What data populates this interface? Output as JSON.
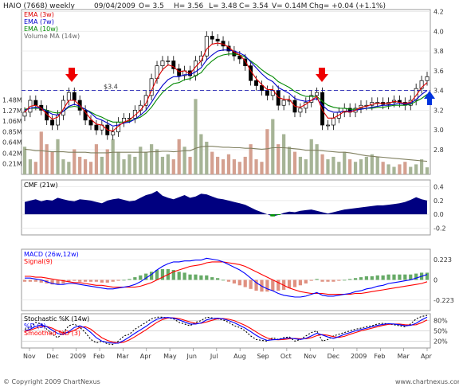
{
  "header": {
    "symbol": "HAIO (7668) weekly",
    "date": "09/04/2009",
    "open": "O= 3.5",
    "high": "H= 3.56",
    "low": "L= 3.48",
    "close": "C= 3.54",
    "volume": "V= 0.14M",
    "change": "Chg= +0.04 (+1.1%)"
  },
  "footer": {
    "copyright": "© Copyright 2009 ChartNexus",
    "website": "www.chartnexus.com"
  },
  "colors": {
    "ema3": "#dd0000",
    "ema7": "#0000cc",
    "ema10": "#008800",
    "volma": "#808060",
    "vol_up": "#a6b496",
    "vol_down": "#d4a090",
    "cmf": "#000080",
    "macd": "#0000ff",
    "signal": "#ff0000",
    "hist_up": "#66aa66",
    "hist_down": "#e09080",
    "stoch_k": "#0000ff",
    "stoch_d": "#ff0000",
    "stoch_raw": "#000000",
    "ref_line": "#0000aa"
  },
  "chart_data": [
    {
      "type": "candlestick",
      "title": "HAIO (7668) weekly",
      "x_labels": [
        "Nov",
        "Dec",
        "2009",
        "Feb",
        "Mar",
        "Apr",
        "May",
        "Jun",
        "Jul",
        "Aug",
        "Sep",
        "Oct",
        "Nov",
        "Dec",
        "2009",
        "Feb",
        "Mar",
        "Apr"
      ],
      "price_ticks": [
        "4.2",
        "4.0",
        "3.8",
        "3.6",
        "3.4",
        "3.2",
        "3.0",
        "2.8"
      ],
      "volume_ticks": [
        "1.48M",
        "1.27M",
        "1.06M",
        "0.85M",
        "0.64M",
        "0.42M",
        "0.21M"
      ],
      "ylim": [
        2.55,
        4.22
      ],
      "reference_line": {
        "label": "$3.4",
        "value": 3.4
      },
      "legend": [
        "EMA (3w)",
        "EMA (7w)",
        "EMA (10w)",
        "Volume MA (14w)"
      ],
      "close": [
        3.18,
        3.3,
        3.25,
        3.2,
        3.1,
        3.05,
        3.15,
        3.3,
        3.38,
        3.3,
        3.2,
        3.1,
        3.05,
        3.0,
        3.05,
        2.95,
        2.98,
        3.08,
        3.12,
        3.12,
        3.2,
        3.25,
        3.35,
        3.52,
        3.65,
        3.7,
        3.7,
        3.62,
        3.55,
        3.6,
        3.55,
        3.7,
        3.75,
        3.95,
        3.92,
        3.9,
        3.85,
        3.8,
        3.75,
        3.72,
        3.65,
        3.5,
        3.45,
        3.4,
        3.35,
        3.4,
        3.25,
        3.3,
        3.3,
        3.18,
        3.22,
        3.28,
        3.35,
        3.38,
        3.05,
        3.05,
        3.12,
        3.18,
        3.22,
        3.18,
        3.22,
        3.25,
        3.25,
        3.28,
        3.28,
        3.26,
        3.28,
        3.3,
        3.28,
        3.25,
        3.3,
        3.42,
        3.5,
        3.54
      ],
      "ema_3w": [
        3.18,
        3.24,
        3.25,
        3.22,
        3.16,
        3.11,
        3.13,
        3.21,
        3.3,
        3.3,
        3.25,
        3.18,
        3.11,
        3.06,
        3.05,
        3.0,
        2.99,
        3.04,
        3.08,
        3.1,
        3.15,
        3.2,
        3.27,
        3.4,
        3.52,
        3.61,
        3.66,
        3.64,
        3.59,
        3.6,
        3.57,
        3.64,
        3.7,
        3.82,
        3.87,
        3.88,
        3.87,
        3.84,
        3.79,
        3.76,
        3.7,
        3.6,
        3.52,
        3.46,
        3.41,
        3.41,
        3.33,
        3.31,
        3.31,
        3.24,
        3.23,
        3.26,
        3.3,
        3.34,
        3.2,
        3.12,
        3.12,
        3.15,
        3.19,
        3.18,
        3.2,
        3.23,
        3.24,
        3.26,
        3.27,
        3.27,
        3.27,
        3.29,
        3.28,
        3.27,
        3.28,
        3.35,
        3.43,
        3.48
      ],
      "ema_7w": [
        3.2,
        3.22,
        3.23,
        3.22,
        3.19,
        3.16,
        3.15,
        3.19,
        3.24,
        3.26,
        3.24,
        3.21,
        3.17,
        3.12,
        3.1,
        3.07,
        3.04,
        3.05,
        3.07,
        3.08,
        3.11,
        3.15,
        3.2,
        3.28,
        3.37,
        3.45,
        3.51,
        3.54,
        3.54,
        3.56,
        3.56,
        3.59,
        3.63,
        3.71,
        3.76,
        3.8,
        3.81,
        3.81,
        3.8,
        3.78,
        3.75,
        3.69,
        3.63,
        3.57,
        3.52,
        3.49,
        3.43,
        3.4,
        3.37,
        3.32,
        3.3,
        3.29,
        3.3,
        3.32,
        3.25,
        3.2,
        3.18,
        3.18,
        3.19,
        3.19,
        3.2,
        3.21,
        3.22,
        3.23,
        3.24,
        3.25,
        3.25,
        3.26,
        3.27,
        3.26,
        3.27,
        3.31,
        3.36,
        3.4
      ],
      "ema_10w": [
        3.21,
        3.22,
        3.22,
        3.22,
        3.2,
        3.18,
        3.17,
        3.19,
        3.23,
        3.24,
        3.23,
        3.21,
        3.18,
        3.15,
        3.13,
        3.1,
        3.08,
        3.08,
        3.08,
        3.09,
        3.11,
        3.13,
        3.17,
        3.23,
        3.31,
        3.38,
        3.43,
        3.47,
        3.48,
        3.51,
        3.52,
        3.55,
        3.58,
        3.65,
        3.7,
        3.74,
        3.76,
        3.77,
        3.77,
        3.76,
        3.74,
        3.7,
        3.66,
        3.61,
        3.57,
        3.54,
        3.49,
        3.46,
        3.43,
        3.39,
        3.36,
        3.34,
        3.34,
        3.34,
        3.29,
        3.25,
        3.23,
        3.22,
        3.22,
        3.21,
        3.21,
        3.21,
        3.22,
        3.22,
        3.23,
        3.23,
        3.24,
        3.25,
        3.25,
        3.25,
        3.26,
        3.29,
        3.32,
        3.36
      ],
      "volume_M": [
        0.55,
        0.3,
        0.25,
        0.85,
        0.6,
        0.45,
        0.7,
        0.3,
        0.25,
        0.5,
        0.35,
        0.3,
        0.25,
        0.6,
        0.35,
        0.5,
        0.7,
        0.45,
        0.3,
        0.4,
        0.35,
        0.55,
        0.45,
        0.6,
        0.5,
        0.35,
        0.4,
        0.3,
        0.7,
        0.55,
        0.35,
        1.5,
        0.8,
        0.65,
        0.45,
        0.35,
        0.3,
        0.4,
        0.3,
        0.25,
        0.35,
        0.6,
        0.3,
        0.25,
        0.9,
        1.1,
        0.6,
        0.8,
        0.55,
        0.45,
        0.35,
        0.3,
        0.7,
        0.6,
        0.4,
        0.3,
        0.35,
        0.25,
        0.45,
        0.3,
        0.25,
        0.3,
        0.35,
        0.4,
        0.35,
        0.25,
        0.2,
        0.15,
        0.2,
        0.25,
        0.15,
        0.2,
        0.3,
        0.14
      ],
      "volume_ma_14w": [
        0.5,
        0.49,
        0.47,
        0.47,
        0.46,
        0.45,
        0.45,
        0.45,
        0.44,
        0.44,
        0.44,
        0.44,
        0.43,
        0.43,
        0.43,
        0.43,
        0.44,
        0.44,
        0.44,
        0.44,
        0.44,
        0.44,
        0.44,
        0.45,
        0.45,
        0.46,
        0.46,
        0.45,
        0.46,
        0.47,
        0.47,
        0.52,
        0.55,
        0.56,
        0.56,
        0.55,
        0.54,
        0.54,
        0.53,
        0.53,
        0.52,
        0.52,
        0.51,
        0.5,
        0.51,
        0.53,
        0.53,
        0.53,
        0.52,
        0.51,
        0.5,
        0.48,
        0.48,
        0.48,
        0.47,
        0.46,
        0.45,
        0.44,
        0.44,
        0.43,
        0.41,
        0.39,
        0.37,
        0.36,
        0.35,
        0.34,
        0.33,
        0.32,
        0.31,
        0.3,
        0.29,
        0.28,
        0.27,
        0.26
      ]
    },
    {
      "type": "area",
      "title": "CMF (21w)",
      "y_ticks": [
        "0.4",
        "0.2",
        "0.0",
        "-0.2"
      ],
      "ylim": [
        -0.3,
        0.5
      ],
      "values": [
        0.18,
        0.2,
        0.22,
        0.19,
        0.21,
        0.2,
        0.24,
        0.22,
        0.2,
        0.19,
        0.22,
        0.21,
        0.2,
        0.18,
        0.16,
        0.2,
        0.22,
        0.23,
        0.21,
        0.19,
        0.2,
        0.24,
        0.28,
        0.3,
        0.34,
        0.27,
        0.24,
        0.22,
        0.25,
        0.28,
        0.24,
        0.26,
        0.3,
        0.29,
        0.26,
        0.23,
        0.22,
        0.2,
        0.18,
        0.16,
        0.14,
        0.1,
        0.06,
        0.03,
        0.0,
        -0.03,
        -0.01,
        0.02,
        0.04,
        0.03,
        0.05,
        0.06,
        0.07,
        0.05,
        0.03,
        0.01,
        0.03,
        0.05,
        0.07,
        0.08,
        0.09,
        0.1,
        0.11,
        0.12,
        0.13,
        0.13,
        0.14,
        0.15,
        0.16,
        0.18,
        0.21,
        0.25,
        0.22,
        0.2
      ]
    },
    {
      "type": "line",
      "title": "MACD (26w,12w)",
      "legend": [
        "MACD (26w,12w)",
        "Signal(9)"
      ],
      "y_ticks": [
        "0.223",
        "0",
        "-0.223"
      ],
      "ylim": [
        -0.34,
        0.34
      ],
      "macd": [
        0.02,
        0.02,
        0.01,
        0.0,
        -0.02,
        -0.04,
        -0.05,
        -0.05,
        -0.04,
        -0.04,
        -0.05,
        -0.06,
        -0.07,
        -0.08,
        -0.09,
        -0.1,
        -0.1,
        -0.09,
        -0.08,
        -0.07,
        -0.05,
        -0.02,
        0.02,
        0.06,
        0.11,
        0.15,
        0.18,
        0.2,
        0.2,
        0.21,
        0.21,
        0.22,
        0.22,
        0.24,
        0.23,
        0.22,
        0.2,
        0.17,
        0.14,
        0.11,
        0.07,
        0.02,
        -0.03,
        -0.07,
        -0.1,
        -0.12,
        -0.15,
        -0.17,
        -0.18,
        -0.19,
        -0.19,
        -0.18,
        -0.16,
        -0.14,
        -0.17,
        -0.18,
        -0.18,
        -0.17,
        -0.16,
        -0.15,
        -0.13,
        -0.12,
        -0.1,
        -0.09,
        -0.07,
        -0.06,
        -0.04,
        -0.03,
        -0.02,
        -0.01,
        0.0,
        0.02,
        0.04,
        0.06
      ],
      "signal": [
        0.04,
        0.04,
        0.03,
        0.03,
        0.02,
        0.01,
        0.0,
        -0.01,
        -0.02,
        -0.03,
        -0.03,
        -0.04,
        -0.05,
        -0.06,
        -0.06,
        -0.07,
        -0.08,
        -0.08,
        -0.08,
        -0.08,
        -0.08,
        -0.07,
        -0.05,
        -0.03,
        0.0,
        0.03,
        0.06,
        0.09,
        0.11,
        0.13,
        0.15,
        0.16,
        0.17,
        0.19,
        0.2,
        0.2,
        0.2,
        0.19,
        0.18,
        0.17,
        0.15,
        0.12,
        0.09,
        0.06,
        0.03,
        0.0,
        -0.03,
        -0.06,
        -0.09,
        -0.11,
        -0.13,
        -0.14,
        -0.15,
        -0.15,
        -0.15,
        -0.16,
        -0.16,
        -0.16,
        -0.16,
        -0.16,
        -0.15,
        -0.15,
        -0.14,
        -0.13,
        -0.12,
        -0.11,
        -0.1,
        -0.09,
        -0.08,
        -0.07,
        -0.06,
        -0.05,
        -0.04,
        -0.02
      ]
    },
    {
      "type": "line",
      "title": "Stochastic %K (14w)",
      "legend": [
        "Stochastic %K (14w)",
        "%D (3)",
        "Smoothed %D (3)"
      ],
      "y_ticks": [
        "80%",
        "50%",
        "20%"
      ],
      "ylim": [
        0,
        100
      ],
      "k": [
        55,
        60,
        75,
        70,
        55,
        40,
        30,
        45,
        65,
        70,
        60,
        45,
        25,
        15,
        20,
        12,
        10,
        20,
        35,
        40,
        55,
        65,
        75,
        85,
        90,
        90,
        88,
        85,
        75,
        70,
        65,
        75,
        80,
        90,
        88,
        85,
        82,
        75,
        65,
        60,
        50,
        35,
        25,
        22,
        20,
        30,
        25,
        30,
        32,
        20,
        25,
        35,
        45,
        50,
        20,
        25,
        35,
        40,
        45,
        50,
        55,
        58,
        62,
        65,
        70,
        72,
        70,
        68,
        65,
        62,
        70,
        85,
        92,
        95
      ],
      "d": [
        50,
        55,
        63,
        68,
        62,
        52,
        42,
        40,
        48,
        60,
        65,
        58,
        45,
        30,
        20,
        16,
        14,
        14,
        22,
        32,
        43,
        53,
        63,
        75,
        84,
        88,
        89,
        87,
        82,
        76,
        70,
        70,
        73,
        82,
        86,
        87,
        85,
        80,
        74,
        66,
        58,
        48,
        37,
        28,
        22,
        24,
        25,
        28,
        29,
        27,
        25,
        28,
        35,
        43,
        38,
        32,
        28,
        33,
        40,
        45,
        50,
        54,
        58,
        62,
        66,
        69,
        71,
        70,
        68,
        65,
        66,
        72,
        82,
        90
      ],
      "d_smoothed": [
        48,
        52,
        58,
        63,
        63,
        58,
        50,
        44,
        45,
        52,
        60,
        62,
        55,
        42,
        30,
        22,
        17,
        15,
        17,
        24,
        33,
        43,
        53,
        64,
        75,
        83,
        88,
        88,
        86,
        81,
        76,
        72,
        72,
        76,
        81,
        85,
        86,
        84,
        80,
        73,
        66,
        57,
        47,
        37,
        29,
        25,
        24,
        25,
        27,
        28,
        27,
        27,
        30,
        36,
        39,
        37,
        33,
        31,
        34,
        40,
        45,
        50,
        54,
        58,
        62,
        66,
        69,
        70,
        70,
        68,
        67,
        68,
        74,
        82
      ]
    }
  ]
}
